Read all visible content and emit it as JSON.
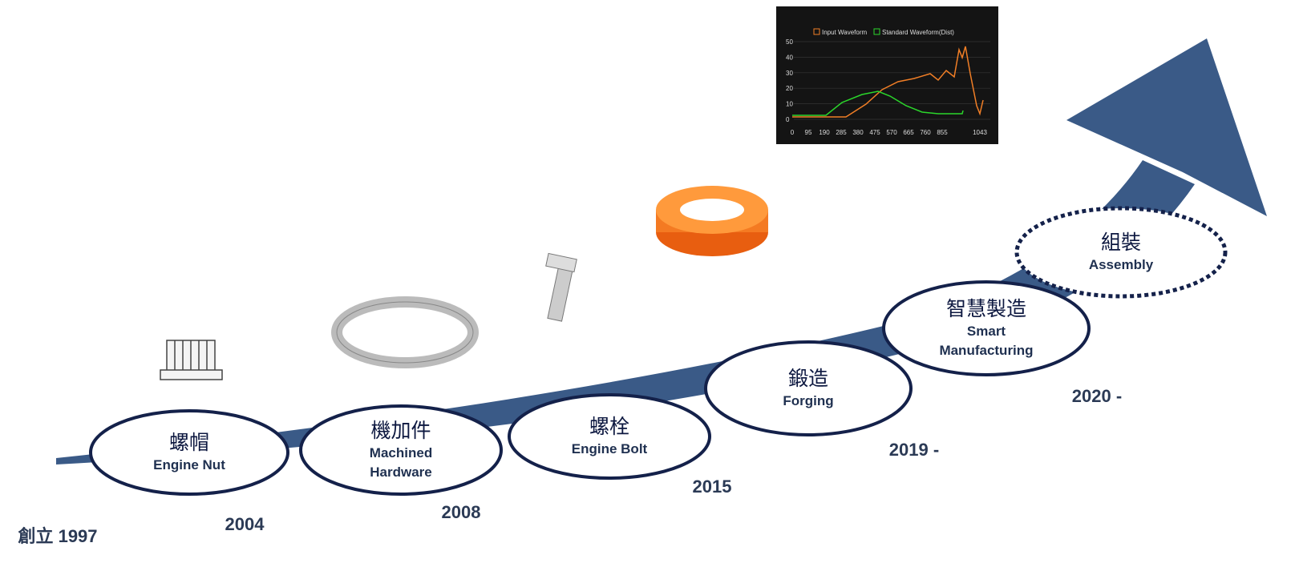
{
  "founded": "創立 1997",
  "milestones": [
    {
      "zh": "螺帽",
      "en": "Engine Nut",
      "year": "2004"
    },
    {
      "zh": "機加件",
      "en": "Machined Hardware",
      "year": "2008"
    },
    {
      "zh": "螺栓",
      "en": "Engine Bolt",
      "year": "2015"
    },
    {
      "zh": "鍛造",
      "en": "Forging",
      "year": "2019 -"
    },
    {
      "zh": "智慧製造",
      "en": "Smart Manufacturing",
      "year": "2020 -"
    },
    {
      "zh": "組裝",
      "en": "Assembly"
    }
  ],
  "inset": {
    "legend": [
      "Input Waveform",
      "Standard Waveform(Dist)"
    ],
    "yticks": [
      50,
      40,
      30,
      20,
      10,
      0
    ],
    "xticks": [
      0,
      95,
      190,
      285,
      380,
      475,
      570,
      665,
      760,
      855,
      1043
    ]
  }
}
